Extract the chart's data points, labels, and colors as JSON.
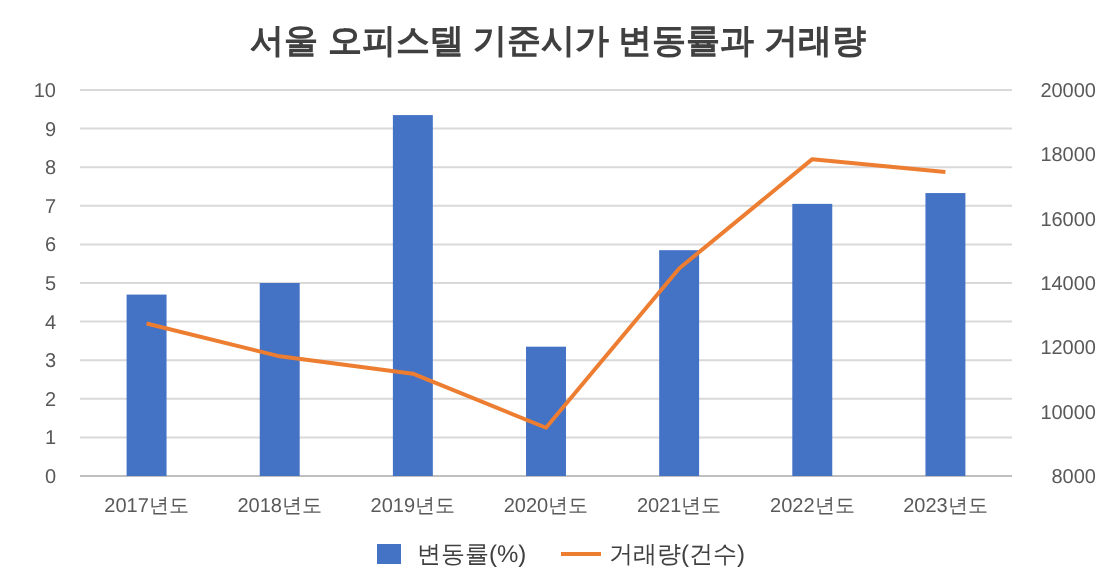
{
  "chart_data": {
    "type": "bar",
    "title": "서울 오피스텔 기준시가 변동률과 거래량",
    "categories": [
      "2017년도",
      "2018년도",
      "2019년도",
      "2020년도",
      "2021년도",
      "2022년도",
      "2023년도"
    ],
    "series": [
      {
        "name": "변동률(%)",
        "color": "#4472c4",
        "values": [
          4.7,
          5.0,
          9.35,
          3.35,
          5.85,
          7.05,
          7.33
        ]
      },
      {
        "name": "거래량(건수)",
        "type": "line",
        "axis": "y2",
        "color": "#ed7d31",
        "values": [
          12740,
          11720,
          11180,
          9500,
          14450,
          17850,
          17450
        ]
      }
    ],
    "ylim": [
      0,
      10
    ],
    "yticks": [
      0,
      1,
      2,
      3,
      4,
      5,
      6,
      7,
      8,
      9,
      10
    ],
    "y2lim": [
      8000,
      20000
    ],
    "y2ticks": [
      8000,
      10000,
      12000,
      14000,
      16000,
      18000,
      20000
    ],
    "grid": "y",
    "legend": "bottom",
    "marker": "none",
    "line_style": "solid"
  }
}
